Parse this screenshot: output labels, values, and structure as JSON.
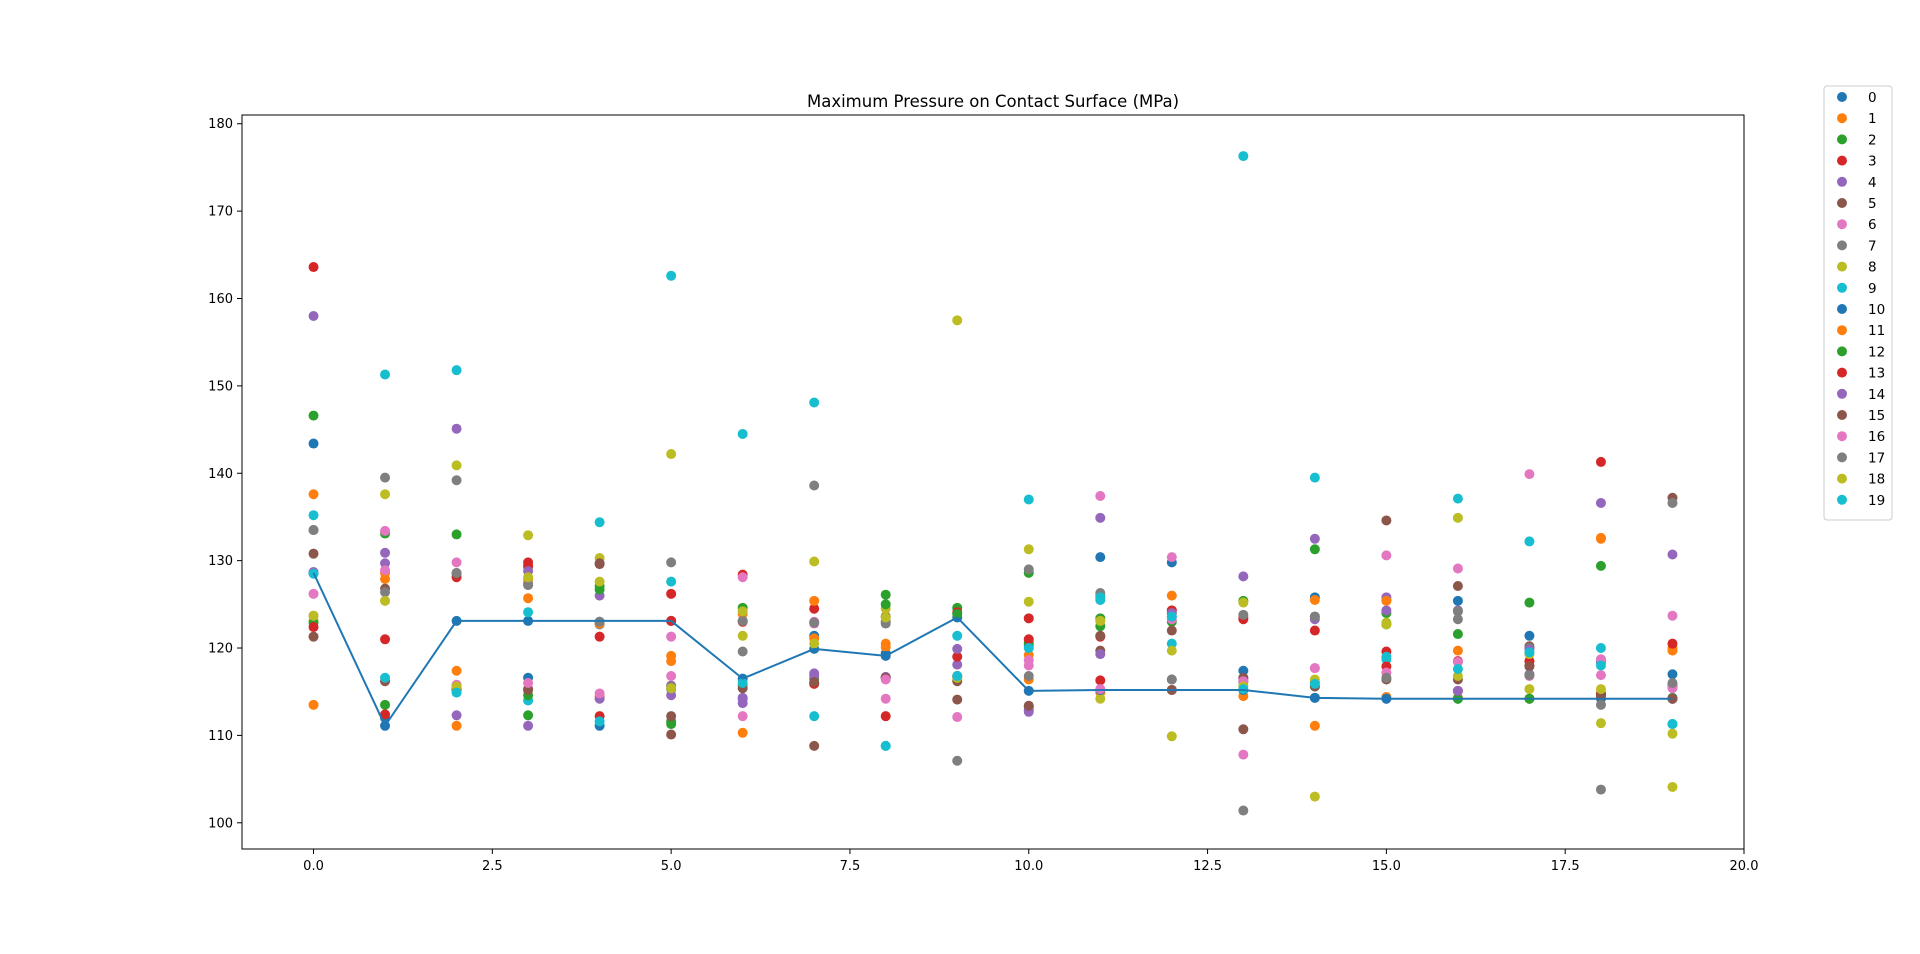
{
  "chart_data": {
    "type": "scatter",
    "title": "Maximum Pressure on Contact Surface (MPa)",
    "xlabel": "",
    "ylabel": "",
    "xlim": [
      -1.0,
      20.0
    ],
    "ylim": [
      97.0,
      181.0
    ],
    "x_ticks": [
      0.0,
      2.5,
      5.0,
      7.5,
      10.0,
      12.5,
      15.0,
      17.5,
      20.0
    ],
    "x_tick_labels": [
      "0.0",
      "2.5",
      "5.0",
      "7.5",
      "10.0",
      "12.5",
      "15.0",
      "17.5",
      "20.0"
    ],
    "y_ticks": [
      100,
      110,
      120,
      130,
      140,
      150,
      160,
      170,
      180
    ],
    "y_tick_labels": [
      "100",
      "110",
      "120",
      "130",
      "140",
      "150",
      "160",
      "170",
      "180"
    ],
    "grid": false,
    "legend_position": "outside-top-right",
    "x": [
      0,
      1,
      2,
      3,
      4,
      5,
      6,
      7,
      8,
      9,
      10,
      11,
      12,
      13,
      14,
      15,
      16,
      17,
      18,
      19
    ],
    "series": [
      {
        "name": "0",
        "color": "#1f77b4",
        "values": [
          143.4,
          111.1,
          123.1,
          116.6,
          111.1,
          115.3,
          114.2,
          121.4,
          119.4,
          116.8,
          120.3,
          130.4,
          129.8,
          117.4,
          125.8,
          125.5,
          125.4,
          121.4,
          118.4,
          117.0
        ]
      },
      {
        "name": "1",
        "color": "#ff7f0e",
        "values": [
          113.5,
          127.9,
          111.1,
          125.7,
          114.5,
          118.5,
          110.3,
          121.1,
          120.1,
          116.4,
          119.2,
          114.9,
          126.0,
          114.5,
          111.1,
          114.4,
          119.7,
          118.5,
          132.5,
          120.0
        ]
      },
      {
        "name": "2",
        "color": "#2ca02c",
        "values": [
          146.6,
          133.1,
          133.0,
          112.3,
          127.1,
          111.3,
          124.6,
          116.5,
          126.1,
          124.6,
          128.6,
          123.4,
          123.0,
          125.4,
          131.3,
          124.0,
          121.6,
          125.2,
          129.4,
          114.3
        ]
      },
      {
        "name": "3",
        "color": "#d62728",
        "values": [
          163.6,
          121.0,
          128.1,
          129.8,
          121.3,
          126.2,
          128.4,
          124.5,
          112.2,
          124.1,
          123.4,
          116.3,
          124.3,
          123.3,
          122.0,
          119.6,
          118.5,
          118.0,
          141.3,
          114.2
        ]
      },
      {
        "name": "4",
        "color": "#9467bd",
        "values": [
          158.0,
          130.9,
          145.1,
          111.1,
          126.0,
          114.6,
          113.7,
          117.1,
          116.7,
          118.1,
          112.7,
          134.9,
          123.6,
          128.2,
          132.5,
          125.8,
          124.3,
          117.0,
          136.6,
          130.7
        ]
      },
      {
        "name": "5",
        "color": "#8c564b",
        "values": [
          130.8,
          116.2,
          128.5,
          115.3,
          129.6,
          110.1,
          123.1,
          108.8,
          123.6,
          114.1,
          113.3,
          119.7,
          122.0,
          110.7,
          123.6,
          134.6,
          127.1,
          120.2,
          114.8,
          137.2
        ]
      },
      {
        "name": "6",
        "color": "#e377c2",
        "values": [
          126.2,
          133.4,
          129.8,
          129.2,
          114.3,
          121.3,
          112.2,
          123.0,
          114.2,
          112.1,
          118.0,
          137.4,
          130.4,
          107.8,
          117.7,
          130.6,
          129.1,
          139.9,
          116.9,
          123.7
        ]
      },
      {
        "name": "7",
        "color": "#7f7f7f",
        "values": [
          133.5,
          139.5,
          139.2,
          127.4,
          122.7,
          129.8,
          119.6,
          138.6,
          122.8,
          107.1,
          129.0,
          126.3,
          116.4,
          101.4,
          114.3,
          114.2,
          124.2,
          120.0,
          103.8,
          136.6
        ]
      },
      {
        "name": "8",
        "color": "#bcbd22",
        "values": [
          123.1,
          137.6,
          140.9,
          132.9,
          130.3,
          142.2,
          121.4,
          129.9,
          124.5,
          157.5,
          131.3,
          114.2,
          109.9,
          125.2,
          103.0,
          122.9,
          134.9,
          115.3,
          111.4,
          104.1
        ]
      },
      {
        "name": "9",
        "color": "#17becf",
        "values": [
          135.2,
          151.3,
          151.8,
          114.0,
          134.4,
          162.6,
          144.5,
          148.1,
          108.8,
          121.4,
          137.0,
          125.5,
          120.5,
          176.3,
          139.5,
          118.7,
          137.1,
          132.2,
          120.0,
          111.3
        ]
      },
      {
        "name": "10",
        "color": "#1f77b4",
        "values": [
          128.6,
          112.0,
          115.6,
          123.1,
          123.0,
          123.1,
          116.5,
          119.9,
          119.1,
          123.5,
          115.1,
          115.2,
          115.2,
          115.2,
          114.3,
          114.2,
          114.2,
          114.2,
          114.2,
          114.2
        ]
      },
      {
        "name": "11",
        "color": "#ff7f0e",
        "values": [
          137.6,
          128.6,
          117.4,
          127.9,
          122.8,
          119.1,
          123.9,
          125.4,
          120.5,
          116.7,
          116.4,
          123.1,
          115.2,
          116.3,
          125.5,
          125.4,
          114.3,
          114.2,
          132.6,
          119.7
        ]
      },
      {
        "name": "12",
        "color": "#2ca02c",
        "values": [
          122.9,
          113.5,
          115.2,
          114.6,
          126.7,
          111.6,
          115.7,
          116.0,
          125.0,
          123.9,
          120.6,
          122.5,
          124.0,
          116.1,
          115.6,
          122.7,
          114.2,
          114.2,
          114.6,
          115.8
        ]
      },
      {
        "name": "13",
        "color": "#d62728",
        "values": [
          122.4,
          112.4,
          115.3,
          129.4,
          112.2,
          123.1,
          123.0,
          115.9,
          116.6,
          119.0,
          121.0,
          121.3,
          124.3,
          123.5,
          116.1,
          117.9,
          115.1,
          118.5,
          114.7,
          120.5
        ]
      },
      {
        "name": "14",
        "color": "#9467bd",
        "values": [
          128.7,
          129.7,
          112.3,
          128.8,
          114.2,
          115.7,
          114.3,
          116.8,
          116.6,
          119.9,
          113.0,
          119.3,
          124.0,
          116.5,
          123.3,
          124.3,
          115.1,
          119.8,
          118.7,
          115.6
        ]
      },
      {
        "name": "15",
        "color": "#8c564b",
        "values": [
          121.3,
          126.8,
          115.3,
          115.2,
          129.7,
          112.2,
          115.4,
          116.1,
          116.6,
          116.2,
          113.4,
          121.4,
          115.2,
          116.6,
          115.6,
          116.4,
          116.4,
          117.9,
          114.5,
          114.2
        ]
      },
      {
        "name": "16",
        "color": "#e377c2",
        "values": [
          123.7,
          128.9,
          115.8,
          116.0,
          114.8,
          116.8,
          128.1,
          122.8,
          116.4,
          116.8,
          118.6,
          115.3,
          123.3,
          116.2,
          117.7,
          117.2,
          118.4,
          116.8,
          118.7,
          115.4
        ]
      },
      {
        "name": "17",
        "color": "#7f7f7f",
        "values": [
          133.5,
          126.4,
          128.6,
          127.2,
          123.0,
          115.6,
          123.1,
          122.9,
          123.0,
          116.8,
          116.8,
          126.0,
          116.4,
          123.8,
          123.6,
          116.6,
          123.3,
          116.9,
          113.5,
          116.0
        ]
      },
      {
        "name": "18",
        "color": "#bcbd22",
        "values": [
          123.7,
          125.4,
          115.6,
          128.1,
          127.6,
          115.4,
          124.2,
          120.5,
          123.5,
          116.6,
          125.3,
          123.1,
          119.7,
          115.6,
          116.4,
          122.7,
          116.8,
          119.3,
          115.3,
          110.2
        ]
      },
      {
        "name": "19",
        "color": "#17becf",
        "values": [
          128.5,
          116.6,
          114.9,
          124.1,
          111.6,
          127.6,
          116.0,
          112.2,
          108.8,
          116.8,
          120.0,
          125.8,
          123.6,
          115.3,
          115.9,
          119.0,
          117.6,
          119.5,
          118.0,
          111.3
        ]
      }
    ],
    "line": {
      "color": "#1f77b4",
      "values": [
        128.6,
        111.1,
        123.1,
        123.1,
        123.1,
        123.1,
        116.5,
        119.9,
        119.1,
        123.5,
        115.1,
        115.2,
        115.2,
        115.2,
        114.3,
        114.2,
        114.2,
        114.2,
        114.2,
        114.2
      ]
    }
  }
}
